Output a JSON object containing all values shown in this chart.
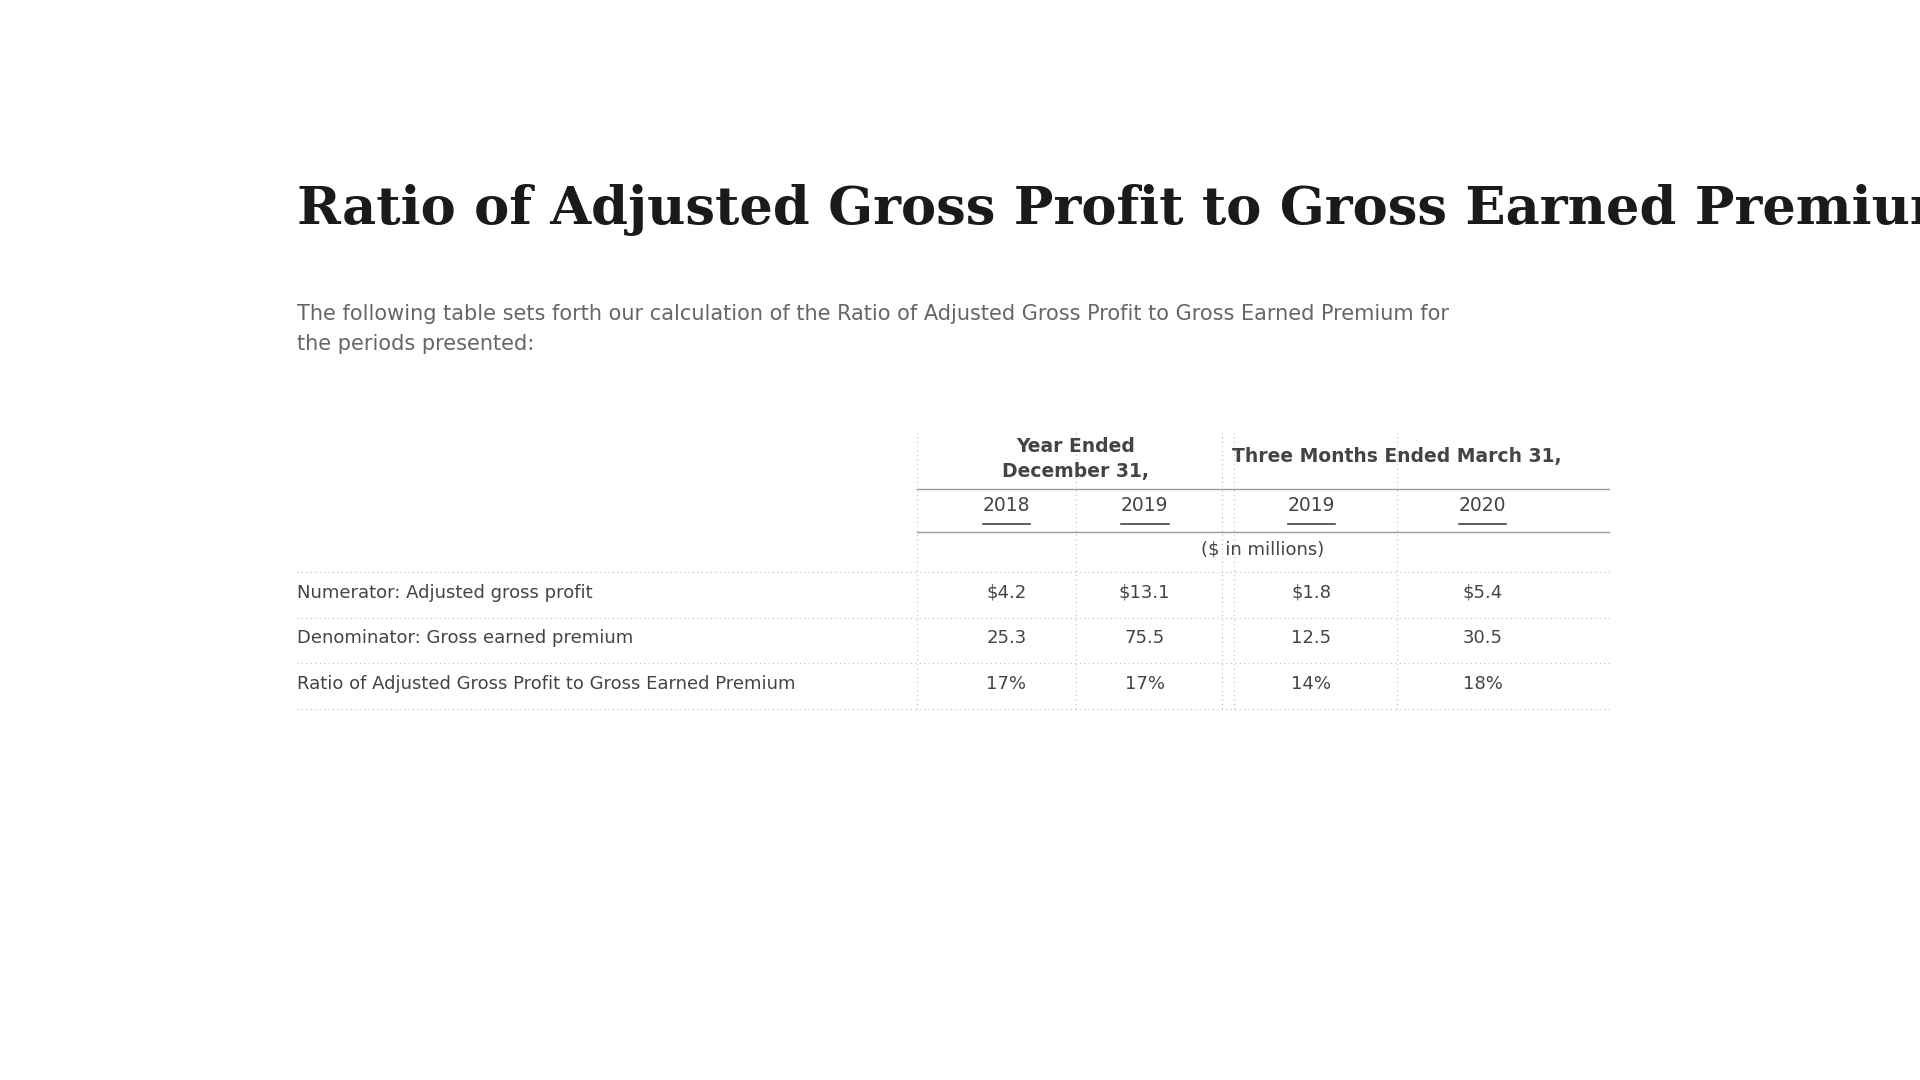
{
  "title": "Ratio of Adjusted Gross Profit to Gross Earned Premium",
  "subtitle": "The following table sets forth our calculation of the Ratio of Adjusted Gross Profit to Gross Earned Premium for\nthe periods presented:",
  "col_group1_label": "Year Ended\nDecember 31,",
  "col_group2_label": "Three Months Ended March 31,",
  "col_years": [
    "2018",
    "2019",
    "2019",
    "2020"
  ],
  "unit_label": "($ in millions)",
  "rows": [
    {
      "label": "Numerator: Adjusted gross profit",
      "values": [
        "$4.2",
        "$13.1",
        "$1.8",
        "$5.4"
      ]
    },
    {
      "label": "Denominator: Gross earned premium",
      "values": [
        "25.3",
        "75.5",
        "12.5",
        "30.5"
      ]
    },
    {
      "label": "Ratio of Adjusted Gross Profit to Gross Earned Premium",
      "values": [
        "17%",
        "17%",
        "14%",
        "18%"
      ]
    }
  ],
  "bg_color": "#ffffff",
  "title_color": "#1a1a1a",
  "subtitle_color": "#666666",
  "header_color": "#444444",
  "cell_color": "#444444",
  "line_color": "#999999",
  "dashed_color": "#bbbbbb",
  "title_fontsize": 38,
  "subtitle_fontsize": 15,
  "header_fontsize": 13.5,
  "year_fontsize": 13.5,
  "cell_fontsize": 13,
  "unit_fontsize": 13
}
